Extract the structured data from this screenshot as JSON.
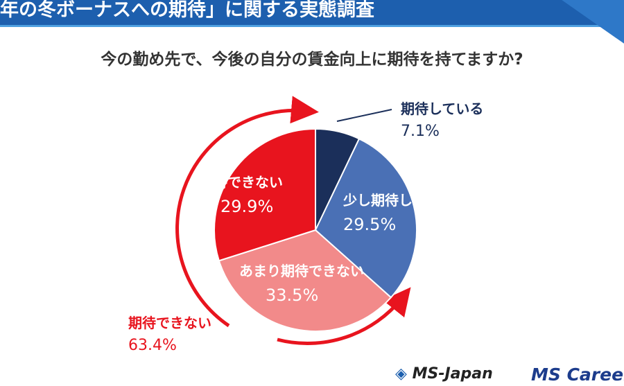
{
  "header": {
    "banner": "年の冬ボーナスへの期待」に関する実態調査"
  },
  "colors": {
    "navy": "#1b2f5a",
    "blue": "#4a70b5",
    "pink": "#f28a8a",
    "red": "#e8141e",
    "banner": "#1d5fae"
  },
  "chart_data": {
    "type": "pie",
    "title": "今の勤め先で、今後の自分の賃金向上に期待を持てますか?",
    "slices": [
      {
        "label": "期待している",
        "value": 7.1,
        "display": "7.1%",
        "color": "#1b2f5a"
      },
      {
        "label": "少し期待している",
        "value": 29.5,
        "display": "29.5%",
        "color": "#4a70b5"
      },
      {
        "label": "あまり期待できない",
        "value": 33.5,
        "display": "33.5%",
        "color": "#f28a8a"
      },
      {
        "label": "期待できない",
        "value": 29.9,
        "display": "29.9%",
        "color": "#e8141e"
      }
    ],
    "annotation": {
      "label": "期待できない",
      "value": "63.4%"
    }
  },
  "logos": {
    "ms_japan": "MS-Japan",
    "ms_career": "MS Career"
  }
}
